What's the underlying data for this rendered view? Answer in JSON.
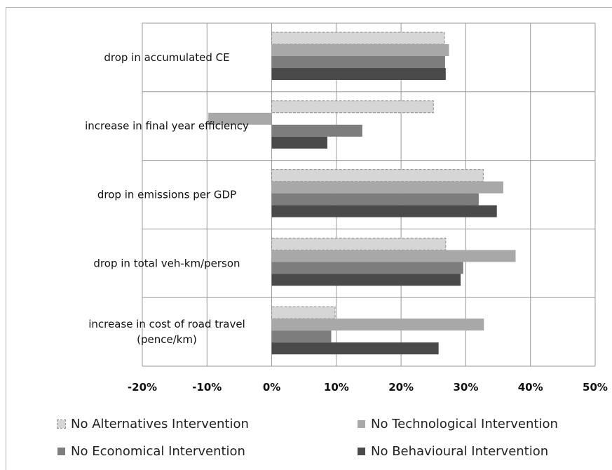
{
  "chart_data": {
    "type": "bar",
    "orientation": "horizontal",
    "categories": [
      [
        "drop in accumulated CE"
      ],
      [
        "increase in final year efficiency"
      ],
      [
        "drop in emissions per GDP"
      ],
      [
        "drop in total veh-km/person"
      ],
      [
        "increase in cost of road travel",
        "(pence/km)"
      ]
    ],
    "series": [
      {
        "name": "No Alternatives Intervention",
        "values": [
          26.7,
          25.0,
          32.7,
          26.9,
          9.8
        ],
        "color": "#d6d6d6",
        "dashed": true
      },
      {
        "name": "No Technological Intervention",
        "values": [
          27.4,
          -9.8,
          35.8,
          37.7,
          32.8
        ],
        "color": "#a8a8a8",
        "dashed": false
      },
      {
        "name": "No Economical Intervention",
        "values": [
          26.8,
          14.0,
          32.0,
          29.6,
          9.2
        ],
        "color": "#7d7d7d",
        "dashed": false
      },
      {
        "name": "No Behavioural Intervention",
        "values": [
          26.9,
          8.6,
          34.8,
          29.2,
          25.8
        ],
        "color": "#4a4a4a",
        "dashed": false
      }
    ],
    "xticks": [
      "-20%",
      "-10%",
      "0%",
      "10%",
      "20%",
      "30%",
      "40%",
      "50%"
    ],
    "xlim": [
      -20,
      50
    ],
    "grid": true,
    "legend_position": "bottom"
  }
}
